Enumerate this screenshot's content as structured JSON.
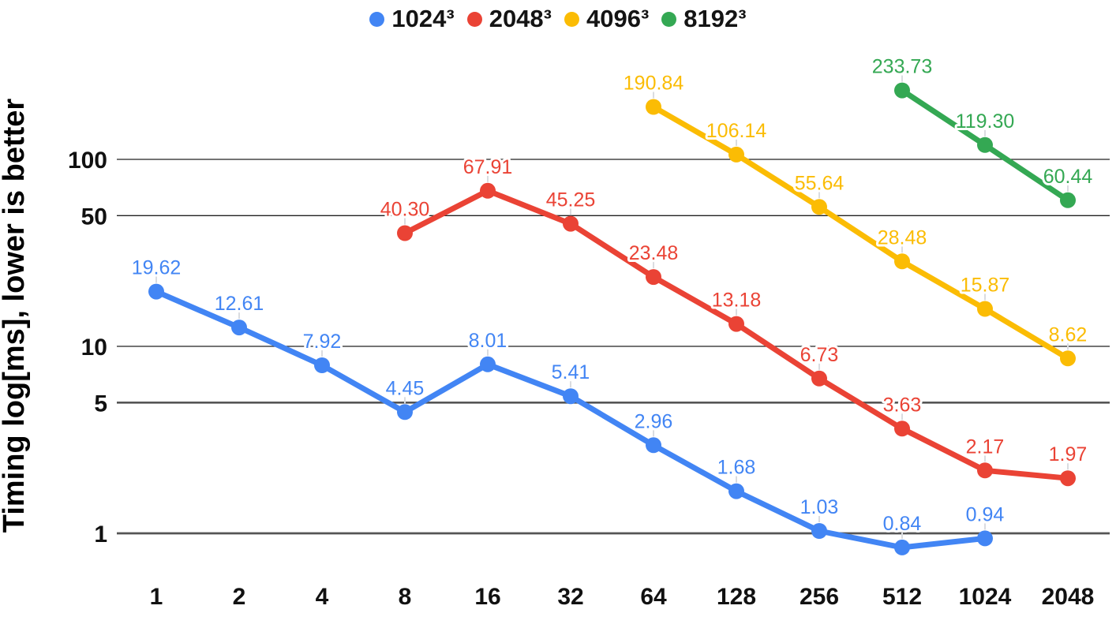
{
  "legend": [
    {
      "label": "1024³",
      "color": "#4285F4"
    },
    {
      "label": "2048³",
      "color": "#EA4335"
    },
    {
      "label": "4096³",
      "color": "#FBBC04"
    },
    {
      "label": "8192³",
      "color": "#34A853"
    }
  ],
  "chart_data": {
    "type": "line",
    "title": "",
    "xlabel": "",
    "ylabel": "Timing log[ms], lower is better",
    "y_scale": "log",
    "ylim": [
      0.8,
      260
    ],
    "grid": true,
    "legend_position": "top",
    "data_labels": true,
    "y_ticks": [
      100,
      50,
      10,
      5,
      1
    ],
    "y_ticks_emphasized": [
      5,
      1
    ],
    "categories": [
      "1",
      "2",
      "4",
      "8",
      "16",
      "32",
      "64",
      "128",
      "256",
      "512",
      "1024",
      "2048"
    ],
    "series": [
      {
        "name": "1024³",
        "color": "#4285F4",
        "start_index": 0,
        "values": [
          19.62,
          12.61,
          7.92,
          4.45,
          8.01,
          5.41,
          2.96,
          1.68,
          1.03,
          0.84,
          0.94
        ]
      },
      {
        "name": "2048³",
        "color": "#EA4335",
        "start_index": 3,
        "values": [
          40.3,
          67.91,
          45.25,
          23.48,
          13.18,
          6.73,
          3.63,
          2.17,
          1.97
        ]
      },
      {
        "name": "4096³",
        "color": "#FBBC04",
        "start_index": 6,
        "values": [
          190.84,
          106.14,
          55.64,
          28.48,
          15.87,
          8.62
        ]
      },
      {
        "name": "8192³",
        "color": "#34A853",
        "start_index": 9,
        "values": [
          233.73,
          119.3,
          60.44
        ]
      }
    ]
  },
  "colors": {
    "background": "#ffffff",
    "grid_minor": "#212121",
    "grid_major": "#555555",
    "leader_line": "#dadce0",
    "axis_text": "#111111"
  }
}
